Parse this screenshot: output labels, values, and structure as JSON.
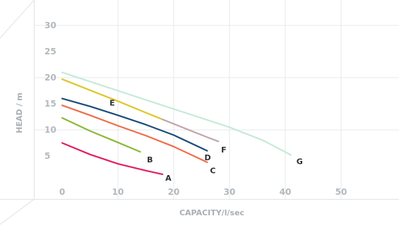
{
  "chart_data": {
    "type": "line",
    "title": "",
    "xlabel": "CAPACITY/l/sec",
    "ylabel": "HEAD / m",
    "xlim": [
      0,
      60
    ],
    "ylim": [
      0,
      35
    ],
    "x_ticks": [
      "0",
      "10",
      "20",
      "30",
      "40",
      "50"
    ],
    "y_ticks": [
      "5",
      "10",
      "15",
      "20",
      "25",
      "30"
    ],
    "grid": true,
    "legend": "inline-labels",
    "series": [
      {
        "name": "A",
        "color": "#e0225f",
        "x": [
          0,
          5,
          10,
          15,
          18
        ],
        "y": [
          7.5,
          5.3,
          3.5,
          2.2,
          1.5
        ]
      },
      {
        "name": "B",
        "color": "#8db83b",
        "x": [
          0,
          5,
          10,
          14
        ],
        "y": [
          12.3,
          9.8,
          7.6,
          5.8
        ]
      },
      {
        "name": "C",
        "color": "#ef6e4b",
        "x": [
          0,
          5,
          10,
          15,
          20,
          26
        ],
        "y": [
          14.7,
          12.8,
          10.8,
          8.9,
          6.8,
          3.8
        ]
      },
      {
        "name": "D",
        "color": "#1b4e7a",
        "x": [
          0,
          5,
          10,
          15,
          20,
          26
        ],
        "y": [
          16,
          14.5,
          12.8,
          11,
          9,
          6
        ]
      },
      {
        "name": "E",
        "color": "#ddc72c",
        "x": [
          0,
          5,
          10,
          15,
          18
        ],
        "y": [
          19.7,
          17.6,
          15.5,
          13.3,
          12
        ]
      },
      {
        "name": "F",
        "color": "#c1a6ad",
        "x": [
          18,
          22,
          26,
          28
        ],
        "y": [
          12,
          10.3,
          8.6,
          7.8
        ]
      },
      {
        "name": "G",
        "color": "#c6ead6",
        "x": [
          0,
          10,
          20,
          30,
          36,
          41
        ],
        "y": [
          21,
          17.5,
          14,
          10.5,
          8,
          5.2
        ]
      }
    ],
    "annotations": [
      {
        "text": "A",
        "x": 18.5,
        "y": 0.8
      },
      {
        "text": "B",
        "x": 15.2,
        "y": 4.3
      },
      {
        "text": "C",
        "x": 26.5,
        "y": 2.2
      },
      {
        "text": "D",
        "x": 25.5,
        "y": 4.7
      },
      {
        "text": "E",
        "x": 8.5,
        "y": 15.2
      },
      {
        "text": "F",
        "x": 28.5,
        "y": 6.2
      },
      {
        "text": "G",
        "x": 42,
        "y": 4.0
      }
    ]
  }
}
